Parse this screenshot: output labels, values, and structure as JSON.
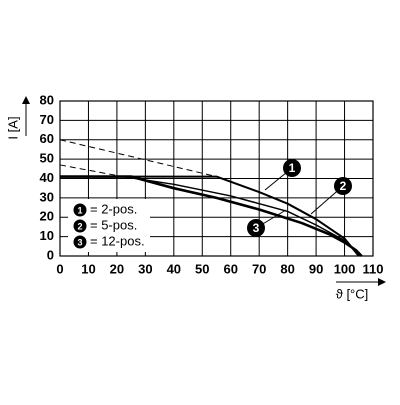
{
  "chart_data": {
    "type": "line",
    "y_label": "I [A]",
    "x_label": "ϑ [°C]",
    "xlim": [
      0,
      110
    ],
    "xticks": [
      0,
      10,
      20,
      30,
      40,
      50,
      60,
      70,
      80,
      90,
      100,
      110
    ],
    "ylim": [
      0,
      80
    ],
    "yticks": [
      0,
      10,
      20,
      30,
      40,
      50,
      60,
      70,
      80
    ],
    "grid": true,
    "series": [
      {
        "name": "= 2-pos.",
        "marker": "1",
        "color": "#000000",
        "width": 2,
        "x": [
          0,
          55,
          70,
          80,
          90,
          100,
          105
        ],
        "values": [
          41,
          41,
          33,
          27,
          19,
          9,
          0
        ],
        "dashed_x": [
          0,
          55
        ],
        "dashed_values": [
          60,
          41
        ]
      },
      {
        "name": "= 5-pos.",
        "marker": "2",
        "color": "#000000",
        "width": 1.5,
        "x": [
          22,
          40,
          60,
          80,
          90,
          100,
          106
        ],
        "values": [
          41,
          37,
          31,
          23,
          16,
          8,
          0
        ],
        "dashed_x": [
          0,
          22
        ],
        "dashed_values": [
          47,
          41
        ]
      },
      {
        "name": "= 12-pos.",
        "marker": "3",
        "color": "#000000",
        "width": 2.6,
        "x": [
          0,
          25,
          40,
          55,
          70,
          85,
          95,
          100,
          104,
          106
        ],
        "values": [
          41,
          41,
          35,
          30,
          24,
          17,
          11,
          7,
          3,
          0
        ]
      }
    ]
  }
}
